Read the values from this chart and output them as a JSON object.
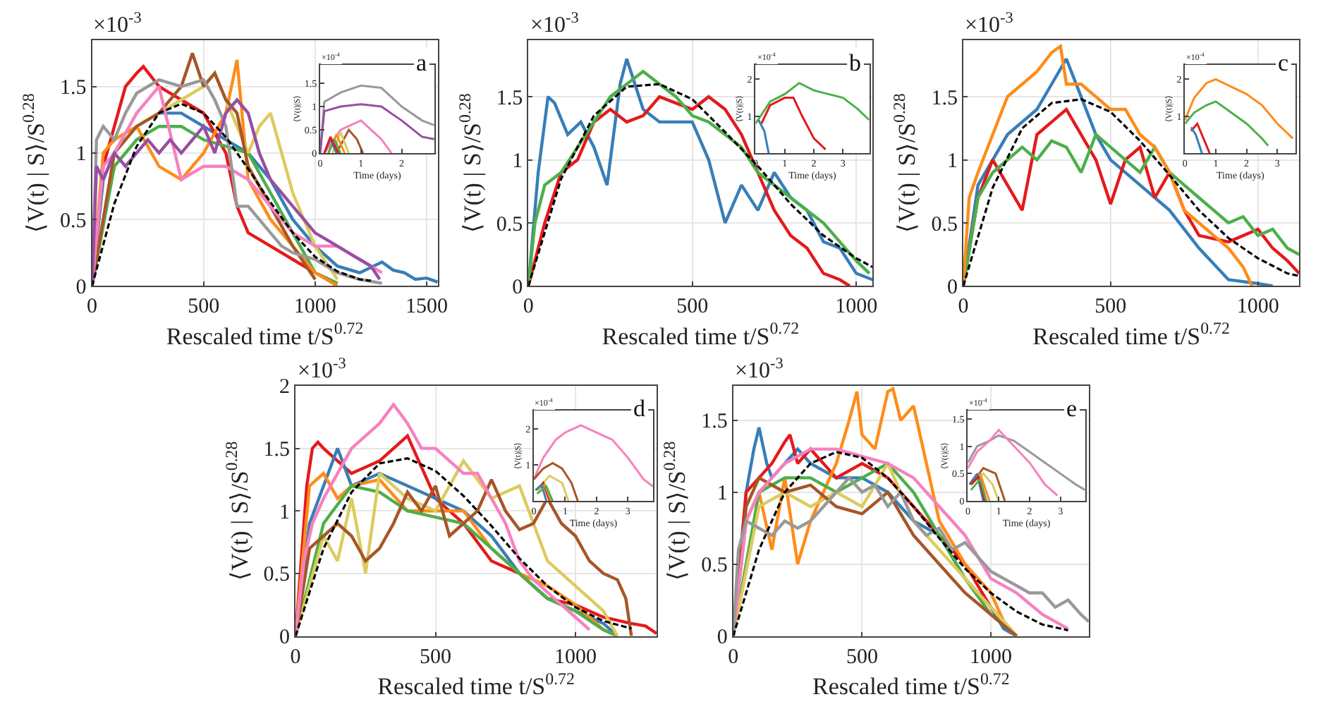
{
  "chart_data": [
    {
      "type": "line",
      "title": "a",
      "xlabel": "Rescaled time t/S$^{0.72}$",
      "ylabel": "⟨V(t) | S⟩/S$^{0.28}$",
      "annotations": [
        "×10$^{-3}$"
      ],
      "xlim": [
        0,
        1550
      ],
      "xticks": [
        0,
        500,
        1000,
        {
          "value": 1500,
          "label": "1500"
        }
      ],
      "ylim": [
        0,
        1.85
      ],
      "yticks": [
        0,
        0.5,
        1,
        1.5
      ],
      "grid": true,
      "series": [
        {
          "color": "#377eb8",
          "x": [
            0,
            50,
            100,
            200,
            300,
            400,
            500,
            600,
            700,
            800,
            900,
            1000,
            1100,
            1200,
            1300,
            1350,
            1400,
            1450,
            1500,
            1550
          ],
          "values": [
            0,
            0.8,
            1.0,
            null,
            1.3,
            1.3,
            1.2,
            1.1,
            1.0,
            0.8,
            0.5,
            0.3,
            0.15,
            0.1,
            0.18,
            0.12,
            0.1,
            0.05,
            0.06,
            0.03
          ]
        },
        {
          "color": "#e41a1c",
          "x": [
            0,
            50,
            100,
            150,
            200,
            230,
            300,
            400,
            500,
            600,
            650,
            700,
            750,
            800,
            900,
            1000,
            1100
          ],
          "values": [
            0,
            0.9,
            1.2,
            1.5,
            1.6,
            1.65,
            1.5,
            1.4,
            1.3,
            1.0,
            0.6,
            0.4,
            0.35,
            0.3,
            0.2,
            0.1,
            0.02
          ]
        },
        {
          "color": "#4daf4a",
          "x": [
            0,
            100,
            200,
            300,
            400,
            500,
            600,
            700,
            800,
            900,
            1000,
            1100
          ],
          "values": [
            0,
            0.9,
            1.1,
            1.2,
            1.2,
            1.1,
            1.05,
            1.0,
            0.7,
            0.4,
            0.1,
            0.02
          ]
        },
        {
          "color": "#ff8c1a",
          "x": [
            0,
            50,
            100,
            200,
            300,
            400,
            500,
            600,
            650,
            700,
            800,
            900,
            1000,
            1100
          ],
          "values": [
            0,
            1.0,
            1.1,
            1.2,
            0.9,
            0.8,
            1.0,
            1.3,
            1.7,
            0.8,
            0.5,
            0.3,
            0.1,
            0.0
          ]
        },
        {
          "color": "#dccb5e",
          "x": [
            0,
            100,
            200,
            300,
            400,
            500,
            550,
            600,
            700,
            750,
            800,
            900,
            1000,
            1100
          ],
          "values": [
            0,
            1.0,
            1.2,
            1.3,
            1.4,
            1.5,
            1.6,
            1.4,
            1.0,
            1.2,
            1.3,
            0.7,
            0.3,
            0.05
          ]
        },
        {
          "color": "#a65628",
          "x": [
            0,
            100,
            200,
            300,
            400,
            450,
            500,
            550,
            600,
            650,
            700,
            800,
            900,
            1000
          ],
          "values": [
            0,
            1.0,
            1.2,
            1.3,
            1.5,
            1.75,
            1.5,
            1.6,
            1.4,
            1.3,
            0.9,
            0.6,
            0.3,
            0.05
          ]
        },
        {
          "color": "#f781bf",
          "x": [
            0,
            50,
            100,
            200,
            300,
            400,
            500,
            600,
            700,
            800,
            900,
            1000,
            1100,
            1200,
            1300
          ],
          "values": [
            0,
            0.9,
            1.0,
            1.3,
            1.5,
            0.8,
            0.9,
            0.9,
            0.8,
            0.6,
            0.4,
            0.3,
            0.3,
            0.2,
            0.1
          ]
        },
        {
          "color": "#999999",
          "x": [
            0,
            20,
            50,
            100,
            150,
            200,
            250,
            300,
            400,
            500,
            550,
            600,
            650,
            700,
            750,
            800,
            850,
            900,
            1000,
            1100,
            1200,
            1300
          ],
          "values": [
            0,
            1.1,
            1.2,
            1.1,
            1.3,
            1.45,
            1.5,
            1.55,
            1.5,
            1.55,
            1.4,
            1.2,
            0.6,
            0.6,
            0.5,
            0.4,
            0.3,
            0.25,
            0.2,
            0.1,
            0.05,
            0.02
          ]
        },
        {
          "color": "#984ea3",
          "x": [
            0,
            20,
            50,
            100,
            150,
            200,
            250,
            300,
            350,
            400,
            450,
            500,
            550,
            600,
            650,
            700,
            750,
            800,
            850,
            900,
            950,
            1000,
            1050,
            1100,
            1150,
            1200,
            1250,
            1290
          ],
          "values": [
            0,
            0.9,
            0.8,
            1.0,
            0.9,
            1.0,
            1.1,
            1.0,
            1.1,
            1.0,
            1.1,
            1.2,
            1.0,
            1.3,
            1.4,
            1.3,
            1.0,
            0.8,
            0.7,
            0.6,
            0.5,
            0.4,
            0.35,
            0.3,
            0.25,
            0.2,
            0.15,
            0.05
          ]
        },
        {
          "color": "#000000",
          "line_style": "dashed",
          "x": [
            0,
            100,
            200,
            300,
            400,
            500,
            600,
            700,
            800,
            900,
            1000,
            1100,
            1200,
            1250
          ],
          "values": [
            0,
            0.62,
            1.05,
            1.3,
            1.37,
            1.3,
            1.12,
            0.88,
            0.63,
            0.4,
            0.22,
            0.11,
            0.05,
            0.04
          ]
        }
      ]
    },
    {
      "type": "line",
      "xlabel": "Time (days)",
      "ylabel": "⟨V(t)|S⟩",
      "annotations": [
        "×10$^{-4}$"
      ],
      "xlim": [
        0,
        2.8
      ],
      "xticks": [
        0,
        1,
        2
      ],
      "ylim": [
        0,
        1.9
      ],
      "yticks": [
        0,
        0.5,
        1,
        1.5
      ],
      "series": [
        {
          "color": "#999999",
          "x": [
            0,
            0.1,
            0.5,
            1,
            1.5,
            2,
            2.5,
            2.8
          ],
          "values": [
            0,
            1.1,
            1.3,
            1.45,
            1.4,
            1.0,
            0.7,
            0.6
          ]
        },
        {
          "color": "#984ea3",
          "x": [
            0,
            0.1,
            0.5,
            1,
            1.5,
            2,
            2.5,
            2.8
          ],
          "values": [
            0,
            0.9,
            1.0,
            1.05,
            1.0,
            0.7,
            0.35,
            0.3
          ]
        },
        {
          "color": "#f781bf",
          "x": [
            0.1,
            0.5,
            1,
            1.5,
            1.75
          ],
          "values": [
            0,
            0.5,
            0.7,
            0.3,
            0
          ]
        },
        {
          "color": "#a65628",
          "x": [
            0.4,
            0.7,
            0.9,
            1.05
          ],
          "values": [
            0,
            0.5,
            0.3,
            0
          ]
        },
        {
          "color": "#dccb5e",
          "x": [
            0.3,
            0.5,
            0.7
          ],
          "values": [
            0,
            0.45,
            0
          ]
        },
        {
          "color": "#ff8c1a",
          "x": [
            0.2,
            0.4,
            0.6
          ],
          "values": [
            0,
            0.4,
            0
          ]
        },
        {
          "color": "#4daf4a",
          "x": [
            0.2,
            0.35,
            0.5
          ],
          "values": [
            0,
            0.3,
            0
          ]
        },
        {
          "color": "#377eb8",
          "x": [
            0.1,
            0.25,
            0.4
          ],
          "values": [
            0,
            0.3,
            0
          ]
        },
        {
          "color": "#e41a1c",
          "x": [
            0.1,
            0.25,
            0.45
          ],
          "values": [
            0,
            0.35,
            0
          ]
        }
      ]
    },
    {
      "type": "line",
      "title": "b",
      "xlabel": "Rescaled time t/S$^{0.72}$",
      "ylabel": "⟨V(t) | S⟩/S$^{0.28}$",
      "annotations": [
        "×10$^{-3}$"
      ],
      "xlim": [
        0,
        1050
      ],
      "xticks": [
        0,
        500,
        1000
      ],
      "ylim": [
        0,
        1.95
      ],
      "yticks": [
        0,
        0.5,
        1,
        1.5
      ],
      "grid": true,
      "series": [
        {
          "color": "#377eb8",
          "x": [
            0,
            30,
            60,
            80,
            120,
            160,
            200,
            240,
            280,
            300,
            350,
            400,
            500,
            550,
            600,
            650,
            700,
            750,
            800,
            850,
            900,
            950,
            1000,
            1050
          ],
          "values": [
            0,
            0.9,
            1.5,
            1.45,
            1.2,
            1.3,
            1.1,
            0.8,
            1.6,
            1.8,
            1.4,
            1.3,
            1.3,
            1.0,
            0.5,
            0.8,
            0.6,
            0.9,
            0.7,
            0.6,
            0.35,
            0.3,
            0.1,
            0.05
          ]
        },
        {
          "color": "#e41a1c",
          "x": [
            0,
            50,
            100,
            150,
            200,
            250,
            300,
            350,
            400,
            450,
            500,
            550,
            600,
            650,
            700,
            750,
            800,
            850,
            900,
            950,
            980
          ],
          "values": [
            0,
            0.5,
            0.9,
            1.0,
            1.3,
            1.4,
            1.3,
            1.35,
            1.5,
            1.45,
            1.4,
            1.5,
            1.4,
            1.2,
            0.9,
            0.6,
            0.4,
            0.3,
            0.1,
            0.05,
            0
          ]
        },
        {
          "color": "#4daf4a",
          "x": [
            0,
            20,
            50,
            100,
            150,
            200,
            250,
            300,
            350,
            400,
            450,
            500,
            550,
            600,
            650,
            700,
            750,
            800,
            850,
            900,
            950,
            1000,
            1040
          ],
          "values": [
            0,
            0.5,
            0.8,
            0.9,
            1.1,
            1.3,
            1.5,
            1.6,
            1.7,
            1.6,
            1.5,
            1.35,
            1.3,
            1.2,
            1.1,
            0.9,
            0.8,
            0.7,
            0.6,
            0.5,
            0.35,
            0.2,
            0.1
          ]
        },
        {
          "color": "#000000",
          "line_style": "dashed",
          "x": [
            0,
            100,
            200,
            300,
            400,
            500,
            600,
            700,
            800,
            900,
            1000,
            1050
          ],
          "values": [
            0,
            0.85,
            1.35,
            1.58,
            1.6,
            1.48,
            1.22,
            0.95,
            0.65,
            0.4,
            0.22,
            0.15
          ]
        }
      ]
    },
    {
      "type": "line",
      "xlabel": "Time (days)",
      "ylabel": "⟨V(t)|S⟩",
      "annotations": [
        "×10$^{-4}$"
      ],
      "xlim": [
        0,
        3.9
      ],
      "xticks": [
        0,
        1,
        2,
        3
      ],
      "ylim": [
        0,
        2.4
      ],
      "yticks": [
        1,
        2
      ],
      "series": [
        {
          "color": "#4daf4a",
          "x": [
            0,
            0.5,
            1,
            1.5,
            2,
            2.5,
            3,
            3.5,
            3.9
          ],
          "values": [
            0.8,
            1.4,
            1.6,
            1.9,
            1.7,
            1.6,
            1.5,
            1.2,
            0.9
          ]
        },
        {
          "color": "#e41a1c",
          "x": [
            0.2,
            0.5,
            1,
            1.3,
            1.6,
            2,
            2.4
          ],
          "values": [
            0.8,
            1.3,
            1.5,
            1.5,
            1.0,
            0.4,
            0.1
          ]
        },
        {
          "color": "#377eb8",
          "x": [
            0.1,
            0.3,
            0.45
          ],
          "values": [
            0.9,
            0.6,
            0
          ]
        }
      ]
    },
    {
      "type": "line",
      "title": "c",
      "xlabel": "Rescaled time t/S$^{0.72}$",
      "ylabel": "⟨V(t) | S⟩/S$^{0.28}$",
      "annotations": [
        "×10$^{-3}$"
      ],
      "xlim": [
        0,
        1140
      ],
      "xticks": [
        0,
        500,
        1000
      ],
      "ylim": [
        0,
        1.95
      ],
      "yticks": [
        0,
        0.5,
        1,
        1.5
      ],
      "grid": true,
      "series": [
        {
          "color": "#377eb8",
          "x": [
            0,
            50,
            100,
            150,
            200,
            250,
            300,
            350,
            400,
            450,
            500,
            600,
            700,
            800,
            900,
            1000,
            1050
          ],
          "values": [
            0,
            0.8,
            1.0,
            1.2,
            1.3,
            1.4,
            1.6,
            1.8,
            1.5,
            1.2,
            1.0,
            0.8,
            0.6,
            0.3,
            0.05,
            0.02,
            0
          ]
        },
        {
          "color": "#e41a1c",
          "x": [
            0,
            50,
            100,
            150,
            200,
            250,
            300,
            350,
            400,
            450,
            500,
            550,
            600,
            650,
            700,
            750,
            800,
            900,
            1000,
            1050,
            1100,
            1140
          ],
          "values": [
            0,
            0.7,
            1.0,
            0.8,
            0.6,
            1.2,
            1.3,
            1.4,
            1.2,
            1.0,
            0.65,
            1.0,
            1.1,
            0.7,
            0.9,
            0.6,
            0.4,
            0.35,
            0.45,
            0.3,
            0.2,
            0.1
          ]
        },
        {
          "color": "#4daf4a",
          "x": [
            0,
            50,
            100,
            150,
            200,
            250,
            300,
            350,
            400,
            450,
            500,
            550,
            600,
            650,
            700,
            750,
            800,
            850,
            900,
            950,
            1000,
            1050,
            1100,
            1140
          ],
          "values": [
            0,
            0.7,
            0.9,
            1.0,
            1.1,
            1.0,
            1.15,
            1.1,
            0.9,
            1.2,
            1.1,
            1.0,
            0.9,
            1.1,
            0.9,
            0.8,
            0.7,
            0.6,
            0.5,
            0.55,
            0.4,
            0.45,
            0.3,
            0.25
          ]
        },
        {
          "color": "#ff8c1a",
          "x": [
            0,
            20,
            50,
            100,
            150,
            200,
            250,
            300,
            330,
            350,
            400,
            450,
            500,
            550,
            600,
            650,
            700,
            750,
            800,
            850,
            900,
            950,
            980
          ],
          "values": [
            0,
            0.7,
            0.9,
            1.2,
            1.5,
            1.6,
            1.7,
            1.85,
            1.9,
            1.6,
            1.6,
            1.5,
            1.4,
            1.4,
            1.2,
            1.1,
            0.9,
            0.6,
            0.5,
            0.4,
            0.3,
            0.15,
            0
          ]
        },
        {
          "color": "#000000",
          "line_style": "dashed",
          "x": [
            0,
            100,
            200,
            300,
            400,
            500,
            600,
            700,
            800,
            900,
            1000,
            1100,
            1140
          ],
          "values": [
            0,
            0.78,
            1.25,
            1.45,
            1.48,
            1.38,
            1.15,
            0.88,
            0.6,
            0.38,
            0.22,
            0.1,
            0.08
          ]
        }
      ]
    },
    {
      "type": "line",
      "xlabel": "Time (days)",
      "ylabel": "⟨V(t)|S⟩",
      "annotations": [
        "×10$^{-4}$"
      ],
      "xlim": [
        0,
        3.6
      ],
      "xticks": [
        0,
        1,
        2,
        3
      ],
      "ylim": [
        0,
        2.4
      ],
      "yticks": [
        1,
        2
      ],
      "series": [
        {
          "color": "#ff8c1a",
          "x": [
            0,
            0.3,
            0.7,
            1,
            1.5,
            2,
            2.5,
            3,
            3.5
          ],
          "values": [
            0.9,
            1.5,
            1.9,
            2.0,
            1.8,
            1.6,
            1.3,
            0.8,
            0.4
          ]
        },
        {
          "color": "#4daf4a",
          "x": [
            0,
            0.3,
            0.7,
            1,
            1.5,
            2,
            2.5,
            2.7
          ],
          "values": [
            0.8,
            1.1,
            1.3,
            1.4,
            1.1,
            0.8,
            0.4,
            0.2
          ]
        },
        {
          "color": "#e41a1c",
          "x": [
            0.2,
            0.4,
            0.6,
            0.8
          ],
          "values": [
            0.6,
            0.8,
            0.4,
            0
          ]
        },
        {
          "color": "#377eb8",
          "x": [
            0.2,
            0.35,
            0.55
          ],
          "values": [
            0.7,
            0.5,
            0
          ]
        }
      ]
    },
    {
      "type": "line",
      "title": "d",
      "xlabel": "Rescaled time t/S$^{0.72}$",
      "ylabel": "⟨V(t) | S⟩/S$^{0.28}$",
      "annotations": [
        "×10$^{-3}$"
      ],
      "xlim": [
        0,
        1290
      ],
      "xticks": [
        0,
        500,
        1000
      ],
      "ylim": [
        0,
        2
      ],
      "yticks": [
        0,
        0.5,
        1,
        1.5,
        2
      ],
      "grid": true,
      "series": [
        {
          "color": "#e41a1c",
          "x": [
            0,
            40,
            60,
            80,
            100,
            150,
            200,
            300,
            400,
            500,
            600,
            700,
            800,
            900,
            1000,
            1100,
            1200,
            1250,
            1290
          ],
          "values": [
            0,
            1.2,
            1.5,
            1.55,
            1.5,
            1.4,
            1.3,
            1.4,
            1.6,
            1.1,
            0.9,
            0.6,
            0.5,
            0.3,
            0.25,
            0.15,
            0.1,
            0.08,
            0.02
          ]
        },
        {
          "color": "#377eb8",
          "x": [
            0,
            50,
            100,
            150,
            200,
            300,
            400,
            500,
            600,
            700,
            800,
            900,
            1000,
            1100,
            1150
          ],
          "values": [
            0,
            0.9,
            1.2,
            1.5,
            1.2,
            1.3,
            1.2,
            1.1,
            1.0,
            0.8,
            0.5,
            0.3,
            0.2,
            0.1,
            0.0
          ]
        },
        {
          "color": "#ff8c1a",
          "x": [
            0,
            50,
            100,
            150,
            200,
            300,
            400,
            500,
            600,
            700,
            800,
            900,
            1000,
            1100,
            1150
          ],
          "values": [
            0,
            1.2,
            1.3,
            1.1,
            1.2,
            1.25,
            1.0,
            1.0,
            1.0,
            0.7,
            0.5,
            0.4,
            0.25,
            0.05,
            0
          ]
        },
        {
          "color": "#4daf4a",
          "x": [
            0,
            100,
            200,
            300,
            400,
            500,
            600,
            700,
            800,
            900,
            1000,
            1100,
            1150
          ],
          "values": [
            0,
            0.9,
            1.2,
            1.15,
            1.0,
            0.95,
            0.9,
            0.7,
            0.5,
            0.3,
            0.2,
            0.05,
            0
          ]
        },
        {
          "color": "#dccb5e",
          "x": [
            0,
            100,
            150,
            200,
            250,
            300,
            400,
            500,
            600,
            700,
            800,
            900,
            1000,
            1100,
            1150
          ],
          "values": [
            0,
            0.8,
            0.6,
            1.1,
            0.5,
            1.3,
            1.1,
            1.0,
            1.4,
            1.1,
            1.2,
            0.6,
            0.4,
            0.2,
            0
          ]
        },
        {
          "color": "#a65628",
          "x": [
            0,
            50,
            100,
            150,
            200,
            250,
            300,
            350,
            400,
            450,
            500,
            550,
            600,
            650,
            700,
            750,
            800,
            850,
            900,
            950,
            1000,
            1050,
            1100,
            1150,
            1180,
            1200
          ],
          "values": [
            0,
            0.7,
            0.8,
            0.9,
            0.8,
            0.6,
            0.7,
            0.9,
            1.15,
            1.0,
            1.2,
            0.8,
            0.9,
            1.0,
            1.25,
            1.0,
            0.85,
            0.9,
            1.1,
            0.9,
            0.8,
            0.6,
            0.5,
            0.45,
            0.3,
            0
          ]
        },
        {
          "color": "#f781bf",
          "x": [
            0,
            30,
            60,
            100,
            150,
            200,
            250,
            300,
            350,
            400,
            450,
            500,
            550,
            600,
            650,
            700,
            750,
            800,
            850,
            900,
            950,
            1000,
            1050
          ],
          "values": [
            0,
            0.6,
            0.9,
            1.1,
            1.3,
            1.5,
            1.6,
            1.7,
            1.85,
            1.7,
            1.5,
            1.5,
            1.4,
            1.3,
            1.3,
            1.1,
            0.9,
            0.6,
            0.45,
            0.35,
            0.25,
            0.15,
            0.05
          ]
        },
        {
          "color": "#000000",
          "line_style": "dashed",
          "x": [
            0,
            100,
            200,
            300,
            400,
            500,
            600,
            700,
            800,
            900,
            1000,
            1100,
            1200
          ],
          "values": [
            0,
            0.7,
            1.15,
            1.38,
            1.42,
            1.32,
            1.12,
            0.88,
            0.62,
            0.4,
            0.23,
            0.12,
            0.06
          ]
        }
      ]
    },
    {
      "type": "line",
      "xlabel": "Time (days)",
      "ylabel": "⟨V(t)|S⟩",
      "annotations": [
        "×10$^{-4}$"
      ],
      "xlim": [
        0,
        3.8
      ],
      "xticks": [
        0,
        1,
        2,
        3
      ],
      "ylim": [
        0,
        2.5
      ],
      "yticks": [
        1,
        2
      ],
      "series": [
        {
          "color": "#f781bf",
          "x": [
            0,
            0.3,
            0.7,
            1,
            1.5,
            2,
            2.5,
            3,
            3.5,
            3.8
          ],
          "values": [
            0.6,
            1.2,
            1.7,
            1.9,
            2.1,
            1.9,
            1.7,
            1.2,
            0.6,
            0.4
          ]
        },
        {
          "color": "#a65628",
          "x": [
            0,
            0.3,
            0.6,
            0.9,
            1.2,
            1.4
          ],
          "values": [
            0.6,
            0.9,
            1.05,
            0.9,
            0.5,
            0
          ]
        },
        {
          "color": "#dccb5e",
          "x": [
            0.1,
            0.5,
            0.9,
            1.1
          ],
          "values": [
            0.3,
            0.7,
            0.5,
            0
          ]
        },
        {
          "color": "#e41a1c",
          "x": [
            0.1,
            0.3,
            0.5
          ],
          "values": [
            0.3,
            0.5,
            0
          ]
        },
        {
          "color": "#ff8c1a",
          "x": [
            0.1,
            0.35,
            0.55
          ],
          "values": [
            0.3,
            0.45,
            0
          ]
        },
        {
          "color": "#377eb8",
          "x": [
            0.05,
            0.25,
            0.4
          ],
          "values": [
            0.3,
            0.45,
            0
          ]
        },
        {
          "color": "#4daf4a",
          "x": [
            0.1,
            0.4,
            0.6
          ],
          "values": [
            0.2,
            0.4,
            0
          ]
        }
      ]
    },
    {
      "type": "line",
      "title": "e",
      "xlabel": "Rescaled time t/S$^{0.72}$",
      "ylabel": "⟨V(t) | S⟩/S$^{0.28}$",
      "annotations": [
        "×10$^{-3}$"
      ],
      "xlim": [
        0,
        1380
      ],
      "xticks": [
        0,
        500,
        1000
      ],
      "ylim": [
        0,
        1.74
      ],
      "yticks": [
        0,
        0.5,
        1,
        1.5
      ],
      "grid": true,
      "series": [
        {
          "color": "#377eb8",
          "x": [
            0,
            50,
            80,
            100,
            130,
            150,
            200,
            250,
            300,
            400,
            500,
            600,
            700,
            800,
            900,
            1000,
            1050,
            1100
          ],
          "values": [
            0,
            1.0,
            1.3,
            1.45,
            1.2,
            1.1,
            1.2,
            1.3,
            1.2,
            1.1,
            1.1,
            1.0,
            0.8,
            0.7,
            0.4,
            0.2,
            0.05,
            0
          ]
        },
        {
          "color": "#e41a1c",
          "x": [
            0,
            50,
            100,
            150,
            200,
            220,
            250,
            300,
            400,
            500,
            600,
            700,
            800,
            900,
            1000,
            1100
          ],
          "values": [
            0,
            1.0,
            1.1,
            1.2,
            1.35,
            1.4,
            1.2,
            1.3,
            1.1,
            1.2,
            1.1,
            0.9,
            0.7,
            0.5,
            0.2,
            0
          ]
        },
        {
          "color": "#ff8c1a",
          "x": [
            0,
            50,
            100,
            150,
            200,
            250,
            300,
            350,
            400,
            450,
            480,
            500,
            550,
            600,
            620,
            650,
            700,
            750,
            800,
            900,
            1000,
            1050,
            1100
          ],
          "values": [
            0,
            0.8,
            1.0,
            0.6,
            1.1,
            0.5,
            0.8,
            1.0,
            1.2,
            1.5,
            1.7,
            1.4,
            1.3,
            1.7,
            1.72,
            1.5,
            1.6,
            1.2,
            0.8,
            0.5,
            0.3,
            0.1,
            0
          ]
        },
        {
          "color": "#4daf4a",
          "x": [
            0,
            100,
            200,
            300,
            400,
            500,
            600,
            700,
            800,
            900,
            1000,
            1100
          ],
          "values": [
            0,
            1.0,
            1.1,
            1.1,
            1.0,
            1.1,
            1.2,
            1.0,
            0.7,
            0.4,
            0.15,
            0
          ]
        },
        {
          "color": "#dccb5e",
          "x": [
            0,
            100,
            200,
            300,
            400,
            500,
            600,
            700,
            800,
            900,
            1000,
            1100
          ],
          "values": [
            0,
            0.9,
            1.0,
            0.9,
            1.0,
            0.9,
            1.2,
            0.8,
            0.6,
            0.4,
            0.2,
            0
          ]
        },
        {
          "color": "#a65628",
          "x": [
            0,
            50,
            100,
            200,
            300,
            400,
            500,
            600,
            700,
            800,
            900,
            1000,
            1100
          ],
          "values": [
            0,
            0.9,
            1.1,
            1.0,
            1.05,
            0.9,
            0.85,
            1.0,
            0.7,
            0.5,
            0.3,
            0.15,
            0
          ]
        },
        {
          "color": "#f781bf",
          "x": [
            0,
            50,
            100,
            150,
            200,
            300,
            400,
            500,
            600,
            700,
            800,
            900,
            1000,
            1100,
            1200,
            1300
          ],
          "values": [
            0,
            0.8,
            1.0,
            1.1,
            1.2,
            1.3,
            1.3,
            1.25,
            1.2,
            1.1,
            0.9,
            0.7,
            0.4,
            0.3,
            0.15,
            0.05
          ]
        },
        {
          "color": "#999999",
          "x": [
            0,
            20,
            50,
            100,
            150,
            200,
            250,
            300,
            350,
            400,
            450,
            500,
            550,
            600,
            650,
            700,
            750,
            800,
            850,
            900,
            950,
            1000,
            1050,
            1100,
            1150,
            1200,
            1250,
            1300,
            1350,
            1380
          ],
          "values": [
            0,
            0.6,
            0.8,
            0.75,
            0.7,
            0.8,
            0.75,
            0.8,
            0.9,
            1.0,
            1.1,
            1.0,
            1.05,
            0.9,
            1.0,
            0.8,
            0.7,
            0.75,
            0.6,
            0.65,
            0.55,
            0.45,
            0.4,
            0.35,
            0.3,
            0.3,
            0.2,
            0.25,
            0.15,
            0.1
          ]
        },
        {
          "color": "#000000",
          "line_style": "dashed",
          "x": [
            0,
            100,
            200,
            300,
            400,
            500,
            600,
            700,
            800,
            900,
            1000,
            1100,
            1200,
            1300
          ],
          "values": [
            0,
            0.6,
            1.0,
            1.2,
            1.28,
            1.24,
            1.1,
            0.9,
            0.68,
            0.47,
            0.3,
            0.17,
            0.08,
            0.04
          ]
        }
      ]
    },
    {
      "type": "line",
      "xlabel": "Time (days)",
      "ylabel": "⟨V(t)|S⟩",
      "annotations": [
        "×10$^{-4}$"
      ],
      "xlim": [
        0,
        3.8
      ],
      "xticks": [
        0,
        1,
        2,
        3
      ],
      "ylim": [
        0,
        1.65
      ],
      "yticks": [
        0,
        0.5,
        1,
        1.5
      ],
      "series": [
        {
          "color": "#999999",
          "x": [
            0,
            0.3,
            0.7,
            1,
            1.5,
            2,
            2.5,
            3,
            3.5,
            3.8
          ],
          "values": [
            0.7,
            1.0,
            1.1,
            1.2,
            1.1,
            0.9,
            0.7,
            0.5,
            0.3,
            0.2
          ]
        },
        {
          "color": "#f781bf",
          "x": [
            0,
            0.3,
            0.7,
            1,
            1.5,
            2,
            2.5,
            2.9
          ],
          "values": [
            0.6,
            0.9,
            1.1,
            1.3,
            1.0,
            0.7,
            0.3,
            0.1
          ]
        },
        {
          "color": "#a65628",
          "x": [
            0.1,
            0.5,
            0.9,
            1.2
          ],
          "values": [
            0.3,
            0.6,
            0.5,
            0
          ]
        },
        {
          "color": "#dccb5e",
          "x": [
            0.1,
            0.5,
            0.8,
            1.0
          ],
          "values": [
            0.3,
            0.5,
            0.3,
            0
          ]
        },
        {
          "color": "#ff8c1a",
          "x": [
            0.1,
            0.4,
            0.7
          ],
          "values": [
            0.3,
            0.5,
            0
          ]
        },
        {
          "color": "#377eb8",
          "x": [
            0.05,
            0.3,
            0.5
          ],
          "values": [
            0.3,
            0.5,
            0
          ]
        },
        {
          "color": "#e41a1c",
          "x": [
            0.1,
            0.35,
            0.55
          ],
          "values": [
            0.3,
            0.45,
            0
          ]
        },
        {
          "color": "#4daf4a",
          "x": [
            0.1,
            0.4,
            0.6
          ],
          "values": [
            0.2,
            0.4,
            0
          ]
        }
      ]
    }
  ]
}
